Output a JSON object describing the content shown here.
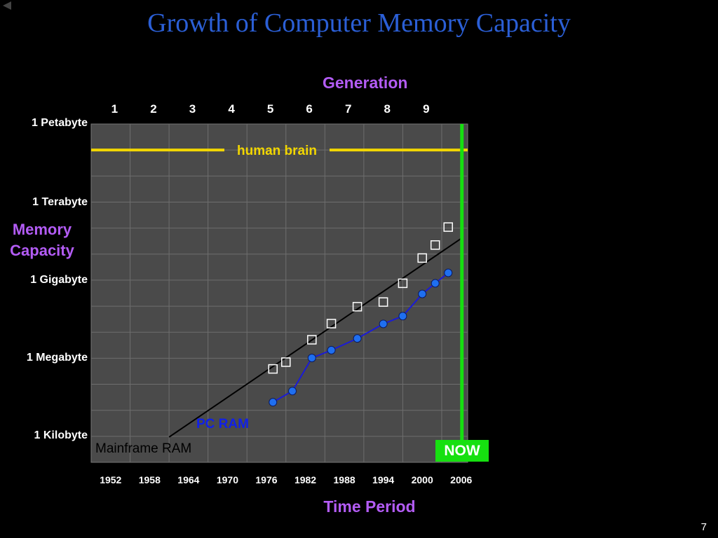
{
  "slide": {
    "title": "Growth of Computer Memory Capacity",
    "page_number": "7",
    "colors": {
      "background": "#000000",
      "title": "#2b5fd6",
      "axis_titles": "#b35cf5",
      "plot_bg": "#4a4a4a",
      "grid": "#6e6e6e",
      "now_badge_bg": "#16e010"
    },
    "nav": {
      "back_icon": "back-arrow-icon"
    }
  },
  "chart_data": {
    "type": "scatter",
    "title": "Growth of Computer Memory Capacity",
    "xlabel": "Time Period",
    "ylabel": "Memory Capacity",
    "top_axis_label": "Generation",
    "xlim": [
      1949,
      2007
    ],
    "ylim": [
      0,
      13
    ],
    "y_scale": "log (1 unit = factor 1000 in bytes)",
    "grid": true,
    "x_tick_labels": [
      "1952",
      "1958",
      "1964",
      "1970",
      "1976",
      "1982",
      "1988",
      "1994",
      "2000",
      "2006"
    ],
    "x_ticks": [
      1952,
      1958,
      1964,
      1970,
      1976,
      1982,
      1988,
      1994,
      2000,
      2006
    ],
    "generation_labels": [
      "1",
      "2",
      "3",
      "4",
      "5",
      "6",
      "7",
      "8",
      "9"
    ],
    "generation_positions": [
      1952.5,
      1958.5,
      1964.5,
      1970.5,
      1976.5,
      1982.5,
      1988.5,
      1994.5,
      2000.5
    ],
    "y_tick_labels": [
      "1 Kilobyte",
      "1 Megabyte",
      "1 Gigabyte",
      "1 Terabyte",
      "1 Petabyte"
    ],
    "y_ticks": [
      1,
      4,
      7,
      10,
      13
    ],
    "reference_lines": [
      {
        "name": "human brain",
        "orientation": "horizontal",
        "value": 12.0,
        "color": "#f2d600"
      },
      {
        "name": "NOW",
        "orientation": "vertical",
        "value": 2006,
        "color": "#16e010"
      }
    ],
    "series": [
      {
        "name": "Mainframe RAM",
        "marker": "square",
        "marker_color": "#ffffff",
        "label_color": "#000000",
        "line_color": "#000000",
        "points": [
          {
            "x": 1977,
            "y": 3.59
          },
          {
            "x": 1979,
            "y": 3.85
          },
          {
            "x": 1983,
            "y": 4.71
          },
          {
            "x": 1986,
            "y": 5.33
          },
          {
            "x": 1990,
            "y": 5.98
          },
          {
            "x": 1994,
            "y": 6.16
          },
          {
            "x": 1997,
            "y": 6.88
          },
          {
            "x": 2000,
            "y": 7.85
          },
          {
            "x": 2002,
            "y": 8.35
          },
          {
            "x": 2004,
            "y": 9.04
          }
        ],
        "trend": [
          {
            "x": 1961,
            "y": 0.97
          },
          {
            "x": 2006,
            "y": 8.6
          }
        ]
      },
      {
        "name": "PC RAM",
        "marker": "circle",
        "marker_color": "#1f6ff0",
        "label_color": "#1020e8",
        "line_color": "#1a1ad8",
        "points": [
          {
            "x": 1977,
            "y": 2.31
          },
          {
            "x": 1980,
            "y": 2.74
          },
          {
            "x": 1983,
            "y": 4.01
          },
          {
            "x": 1986,
            "y": 4.31
          },
          {
            "x": 1990,
            "y": 4.76
          },
          {
            "x": 1994,
            "y": 5.32
          },
          {
            "x": 1997,
            "y": 5.62
          },
          {
            "x": 2000,
            "y": 6.47
          },
          {
            "x": 2002,
            "y": 6.88
          },
          {
            "x": 2004,
            "y": 7.28
          }
        ]
      }
    ]
  }
}
